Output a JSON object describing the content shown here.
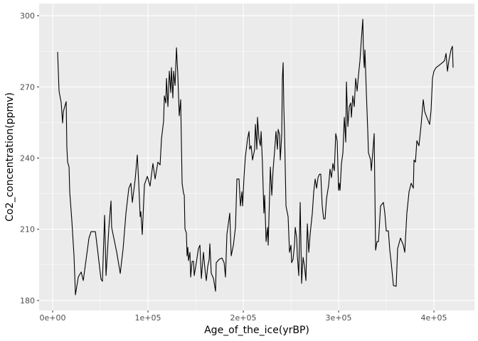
{
  "chart_data": {
    "type": "line",
    "xlabel": "Age_of_the_ice(yrBP)",
    "ylabel": "Co2_concentration(ppmv)",
    "xlim": [
      -14200,
      442500
    ],
    "ylim": [
      175.8,
      305.1
    ],
    "xticks": [
      {
        "value": 0,
        "label": "0e+00"
      },
      {
        "value": 100000,
        "label": "1e+05"
      },
      {
        "value": 200000,
        "label": "2e+05"
      },
      {
        "value": 300000,
        "label": "3e+05"
      },
      {
        "value": 400000,
        "label": "4e+05"
      }
    ],
    "yticks": [
      180,
      210,
      240,
      270,
      300
    ],
    "grid": true,
    "color": "#000000",
    "x": [
      5200,
      6700,
      9000,
      10400,
      11200,
      14200,
      14900,
      15700,
      17200,
      17900,
      20100,
      22400,
      23900,
      26900,
      29900,
      32100,
      35100,
      38100,
      40300,
      44800,
      47000,
      50700,
      52200,
      54500,
      56000,
      59000,
      61200,
      61900,
      67200,
      70900,
      73900,
      76900,
      79900,
      82100,
      83600,
      86600,
      88800,
      90300,
      91800,
      92500,
      94000,
      96300,
      99300,
      102200,
      105200,
      107500,
      110400,
      112700,
      114200,
      116400,
      117200,
      118700,
      119400,
      120900,
      122400,
      123900,
      124600,
      126100,
      126900,
      128400,
      129900,
      131300,
      132800,
      134300,
      135800,
      137300,
      138100,
      138800,
      140300,
      141000,
      141800,
      142500,
      144000,
      144800,
      146300,
      147800,
      148500,
      150700,
      152900,
      154500,
      156000,
      158200,
      159700,
      161200,
      162700,
      164200,
      164900,
      166400,
      168700,
      170900,
      171600,
      174600,
      177600,
      179900,
      181300,
      182800,
      185800,
      187300,
      189600,
      191800,
      193300,
      195500,
      197000,
      198500,
      199300,
      200700,
      202200,
      204500,
      206000,
      206700,
      208200,
      209700,
      211900,
      212700,
      214200,
      214900,
      216400,
      217900,
      218700,
      220100,
      221600,
      222400,
      223900,
      225400,
      226100,
      228400,
      229900,
      231300,
      232800,
      234300,
      235800,
      236600,
      238100,
      238800,
      240300,
      241000,
      241800,
      242500,
      243300,
      244800,
      247000,
      248500,
      250000,
      250700,
      252200,
      253700,
      254500,
      256000,
      256700,
      258200,
      259700,
      261200,
      261900,
      262700,
      264200,
      265700,
      266400,
      267200,
      268700,
      270100,
      272400,
      273900,
      275400,
      276900,
      278400,
      279900,
      281300,
      282800,
      284300,
      285800,
      287300,
      289600,
      291000,
      292500,
      294000,
      295500,
      297000,
      298500,
      300000,
      300700,
      301500,
      303000,
      304500,
      306000,
      307500,
      308200,
      309700,
      311200,
      312700,
      313400,
      314900,
      316400,
      317900,
      319400,
      320900,
      322400,
      323900,
      325400,
      326100,
      326900,
      327600,
      329100,
      330600,
      331300,
      333600,
      334300,
      335800,
      337300,
      338800,
      340300,
      341800,
      344000,
      347000,
      348500,
      350000,
      352200,
      353700,
      355200,
      357500,
      360400,
      361900,
      364900,
      367900,
      369400,
      371600,
      373900,
      376100,
      378400,
      379100,
      380600,
      382100,
      384300,
      386600,
      388800,
      390300,
      392500,
      395500,
      397000,
      398500,
      400000,
      402200,
      405200,
      408900,
      411200,
      412700,
      414200,
      415700,
      417900,
      419400,
      420100
    ],
    "values": [
      284.7,
      268.2,
      263.2,
      254.8,
      259.6,
      263.8,
      244.3,
      238.3,
      236.2,
      225.8,
      213.8,
      198.8,
      182.4,
      189.9,
      192.0,
      188.4,
      197.3,
      206.3,
      209.0,
      209.0,
      201.8,
      189.0,
      188.1,
      215.9,
      190.5,
      210.8,
      221.9,
      210.8,
      200.3,
      191.4,
      201.8,
      216.8,
      227.3,
      229.4,
      221.3,
      231.2,
      241.3,
      229.4,
      215.3,
      217.4,
      207.8,
      228.8,
      232.3,
      228.2,
      237.7,
      231.2,
      238.3,
      237.1,
      248.2,
      255.7,
      266.2,
      263.2,
      273.6,
      261.7,
      276.6,
      267.6,
      278.1,
      265.3,
      276.6,
      270.6,
      286.5,
      275.1,
      257.8,
      264.6,
      229.4,
      225.2,
      224.3,
      210.2,
      208.4,
      198.8,
      202.4,
      196.8,
      200.3,
      189.9,
      196.5,
      196.5,
      190.5,
      195.9,
      201.8,
      203.3,
      189.3,
      200.3,
      193.5,
      188.4,
      194.4,
      197.3,
      203.9,
      191.4,
      189.3,
      183.9,
      195.9,
      197.3,
      197.9,
      195.9,
      189.9,
      207.8,
      216.8,
      198.8,
      203.3,
      210.8,
      231.2,
      231.2,
      219.8,
      225.8,
      219.8,
      231.8,
      240.7,
      248.2,
      251.2,
      243.7,
      245.2,
      239.2,
      243.7,
      254.2,
      243.7,
      257.2,
      248.2,
      245.2,
      251.2,
      237.7,
      216.8,
      224.3,
      204.8,
      210.8,
      203.3,
      236.2,
      224.3,
      235.3,
      242.8,
      251.2,
      243.7,
      252.1,
      249.7,
      239.2,
      249.7,
      273.6,
      280.2,
      261.7,
      250.3,
      219.8,
      215.3,
      200.3,
      203.3,
      195.9,
      197.3,
      203.3,
      210.8,
      206.3,
      198.8,
      190.5,
      221.3,
      187.2,
      192.9,
      198.2,
      194.4,
      188.4,
      200.3,
      212.3,
      200.3,
      207.8,
      216.8,
      225.8,
      231.2,
      227.3,
      231.8,
      233.2,
      233.2,
      219.8,
      214.4,
      214.4,
      222.8,
      228.8,
      235.3,
      231.8,
      237.7,
      234.7,
      250.3,
      247.3,
      226.4,
      229.4,
      226.4,
      237.7,
      242.2,
      257.2,
      246.7,
      272.1,
      253.3,
      261.7,
      263.2,
      257.2,
      266.2,
      261.7,
      273.6,
      268.2,
      275.1,
      281.1,
      290.1,
      298.5,
      284.1,
      278.1,
      285.6,
      267.6,
      251.2,
      242.2,
      239.2,
      234.7,
      242.2,
      250.3,
      201.2,
      204.8,
      204.8,
      219.8,
      221.3,
      216.8,
      209.3,
      209.3,
      201.2,
      195.9,
      186.3,
      186.0,
      201.8,
      206.3,
      203.3,
      200.3,
      216.8,
      225.8,
      229.4,
      227.3,
      239.2,
      238.3,
      247.3,
      245.2,
      254.2,
      264.6,
      259.6,
      257.2,
      254.2,
      260.2,
      273.6,
      276.6,
      278.1,
      279.0,
      280.2,
      281.1,
      284.1,
      276.6,
      281.1,
      285.6,
      287.1,
      278.1
    ]
  }
}
